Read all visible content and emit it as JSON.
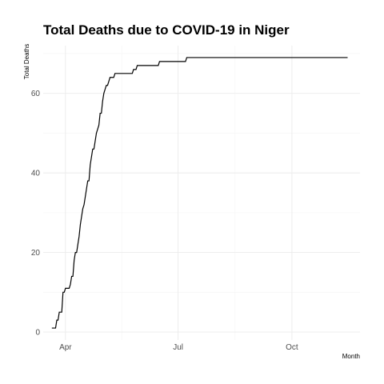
{
  "chart_data": {
    "type": "line",
    "title": "Total Deaths due to COVID-19 in Niger",
    "xlabel": "Month",
    "ylabel": "Total Deaths",
    "x_ticks": [
      {
        "label": "Apr",
        "date": "2020-04-01"
      },
      {
        "label": "Jul",
        "date": "2020-07-01"
      },
      {
        "label": "Oct",
        "date": "2020-10-01"
      }
    ],
    "y_ticks": [
      0,
      20,
      40,
      60
    ],
    "xlim": [
      "2020-03-14",
      "2020-11-25"
    ],
    "ylim": [
      -2,
      72
    ],
    "grid": true,
    "series": [
      {
        "points": [
          [
            "2020-03-21",
            1
          ],
          [
            "2020-03-24",
            1
          ],
          [
            "2020-03-25",
            3
          ],
          [
            "2020-03-26",
            3
          ],
          [
            "2020-03-27",
            5
          ],
          [
            "2020-03-29",
            5
          ],
          [
            "2020-03-30",
            10
          ],
          [
            "2020-03-31",
            10
          ],
          [
            "2020-04-01",
            11
          ],
          [
            "2020-04-04",
            11
          ],
          [
            "2020-04-05",
            12
          ],
          [
            "2020-04-06",
            14
          ],
          [
            "2020-04-07",
            14
          ],
          [
            "2020-04-08",
            18
          ],
          [
            "2020-04-09",
            20
          ],
          [
            "2020-04-10",
            20
          ],
          [
            "2020-04-11",
            22
          ],
          [
            "2020-04-12",
            24
          ],
          [
            "2020-04-13",
            27
          ],
          [
            "2020-04-14",
            29
          ],
          [
            "2020-04-15",
            31
          ],
          [
            "2020-04-16",
            32
          ],
          [
            "2020-04-17",
            34
          ],
          [
            "2020-04-18",
            36
          ],
          [
            "2020-04-19",
            38
          ],
          [
            "2020-04-20",
            38
          ],
          [
            "2020-04-21",
            42
          ],
          [
            "2020-04-22",
            44
          ],
          [
            "2020-04-23",
            46
          ],
          [
            "2020-04-24",
            46
          ],
          [
            "2020-04-25",
            48
          ],
          [
            "2020-04-26",
            50
          ],
          [
            "2020-04-27",
            51
          ],
          [
            "2020-04-28",
            52
          ],
          [
            "2020-04-29",
            55
          ],
          [
            "2020-04-30",
            55
          ],
          [
            "2020-05-01",
            58
          ],
          [
            "2020-05-02",
            60
          ],
          [
            "2020-05-03",
            61
          ],
          [
            "2020-05-04",
            62
          ],
          [
            "2020-05-05",
            62
          ],
          [
            "2020-05-06",
            63
          ],
          [
            "2020-05-07",
            64
          ],
          [
            "2020-05-10",
            64
          ],
          [
            "2020-05-11",
            65
          ],
          [
            "2020-05-25",
            65
          ],
          [
            "2020-05-26",
            66
          ],
          [
            "2020-05-28",
            66
          ],
          [
            "2020-05-29",
            67
          ],
          [
            "2020-06-15",
            67
          ],
          [
            "2020-06-16",
            68
          ],
          [
            "2020-07-07",
            68
          ],
          [
            "2020-07-08",
            69
          ],
          [
            "2020-11-15",
            69
          ]
        ]
      }
    ]
  }
}
